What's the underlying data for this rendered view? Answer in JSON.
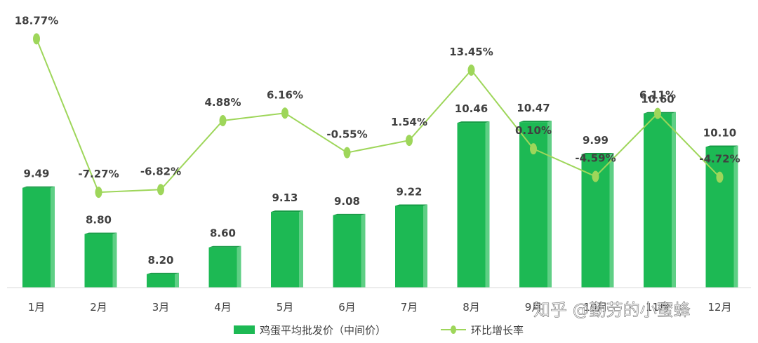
{
  "chart_data": {
    "type": "bar",
    "categories": [
      "1月",
      "2月",
      "3月",
      "4月",
      "5月",
      "6月",
      "7月",
      "8月",
      "9月",
      "10月",
      "11月",
      "12月"
    ],
    "series": [
      {
        "name": "鸡蛋平均批发价（中间价）",
        "chart": "bar",
        "color": "#1db954",
        "values": [
          9.49,
          8.8,
          8.2,
          8.6,
          9.13,
          9.08,
          9.22,
          10.46,
          10.47,
          9.99,
          10.6,
          10.1
        ],
        "labels": [
          "9.49",
          "8.80",
          "8.20",
          "8.60",
          "9.13",
          "9.08",
          "9.22",
          "10.46",
          "10.47",
          "9.99",
          "10.60",
          "10.10"
        ]
      },
      {
        "name": "环比增长率",
        "chart": "line",
        "color": "#9ed65a",
        "values": [
          18.77,
          -7.27,
          -6.82,
          4.88,
          6.16,
          -0.55,
          1.54,
          13.45,
          0.1,
          -4.59,
          6.11,
          -4.72
        ],
        "labels": [
          "18.77%",
          "-7.27%",
          "-6.82%",
          "4.88%",
          "6.16%",
          "-0.55%",
          "1.54%",
          "13.45%",
          "0.10%",
          "-4.59%",
          "6.11%",
          "-4.72%"
        ]
      }
    ],
    "legend_position": "bottom-center",
    "grid": false
  },
  "watermark": "知乎 @勤劳的小蜜蜂"
}
